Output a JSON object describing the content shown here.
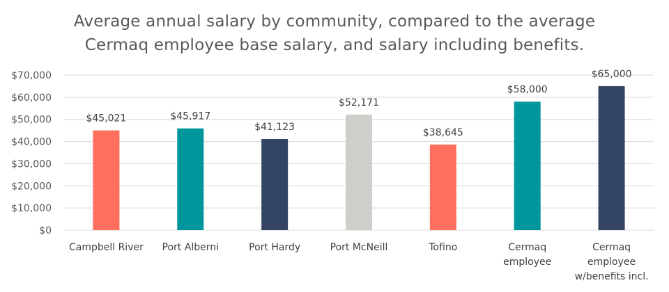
{
  "chart_data": {
    "type": "bar",
    "title": "Average annual salary by community, compared to the average Cermaq employee base salary, and salary including benefits.",
    "title_lines": [
      "Average annual salary by community, compared to the average",
      "Cermaq employee base salary, and salary including benefits."
    ],
    "categories": [
      [
        "Campbell River"
      ],
      [
        "Port Alberni"
      ],
      [
        "Port Hardy"
      ],
      [
        "Port McNeill"
      ],
      [
        "Tofino"
      ],
      [
        "Cermaq",
        "employee"
      ],
      [
        "Cermaq",
        "employee",
        "w/benefits incl."
      ]
    ],
    "values": [
      45021,
      45917,
      41123,
      52171,
      38645,
      58000,
      65000
    ],
    "data_labels": [
      "$45,021",
      "$45,917",
      "$41,123",
      "$52,171",
      "$38,645",
      "$58,000",
      "$65,000"
    ],
    "bar_colors": [
      "#FF6F5E",
      "#00969B",
      "#334562",
      "#D0CECB",
      "#FF6F5E",
      "#00969B",
      "#334562"
    ],
    "ylim": [
      0,
      70000
    ],
    "y_ticks": [
      0,
      10000,
      20000,
      30000,
      40000,
      50000,
      60000,
      70000
    ],
    "y_tick_labels": [
      "$0",
      "$10,000",
      "$20,000",
      "$30,000",
      "$40,000",
      "$50,000",
      "$60,000",
      "$70,000"
    ],
    "xlabel": "",
    "ylabel": "",
    "grid": true,
    "gridline_color": "#D9D9D9",
    "legend": "none"
  }
}
